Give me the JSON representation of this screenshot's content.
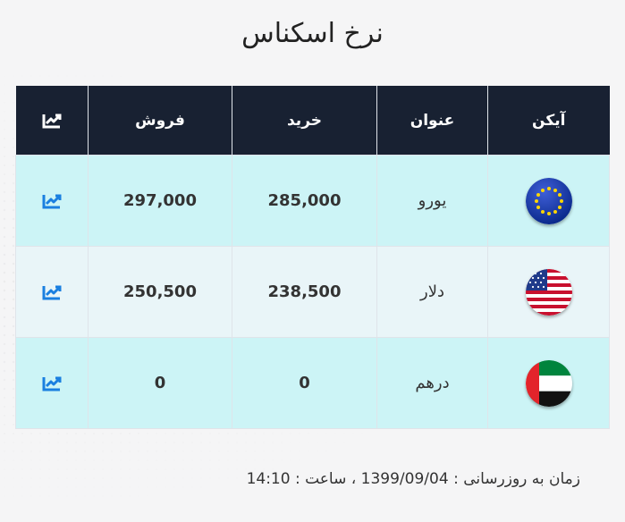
{
  "title": "نرخ اسکناس",
  "table": {
    "headers": {
      "icon": "آیکن",
      "name": "عنوان",
      "buy": "خرید",
      "sell": "فروش",
      "chart_icon": "chart-icon"
    },
    "rows": [
      {
        "flag_icon": "eu-flag-icon",
        "name": "یورو",
        "buy": "285,000",
        "sell": "297,000",
        "chart_icon": "chart-icon"
      },
      {
        "flag_icon": "us-flag-icon",
        "name": "دلار",
        "buy": "238,500",
        "sell": "250,500",
        "chart_icon": "chart-icon"
      },
      {
        "flag_icon": "uae-flag-icon",
        "name": "درهم",
        "buy": "0",
        "sell": "0",
        "chart_icon": "chart-icon"
      }
    ]
  },
  "footer": {
    "label": "زمان به روزرسانی :",
    "date": "1399/09/04",
    "separator": "، ساعت :",
    "time": "14:10"
  },
  "colors": {
    "header_bg": "#182132",
    "row_cyan": "#ccf4f6",
    "row_light": "#e9f5f8",
    "chart_icon_blue": "#1a7fe0",
    "chart_icon_white": "#ffffff"
  }
}
